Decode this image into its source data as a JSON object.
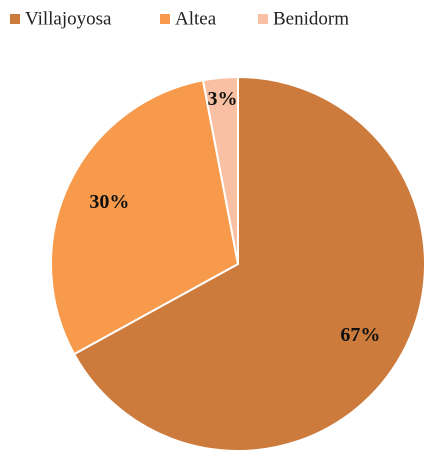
{
  "chart_data": {
    "type": "pie",
    "categories": [
      "Villajoyosa",
      "Altea",
      "Benidorm"
    ],
    "values": [
      67,
      30,
      3
    ],
    "value_labels": [
      "67%",
      "30%",
      "3%"
    ],
    "colors": [
      "#cc7b3c",
      "#f79a4c",
      "#f9c0a3"
    ],
    "legend": "top"
  }
}
